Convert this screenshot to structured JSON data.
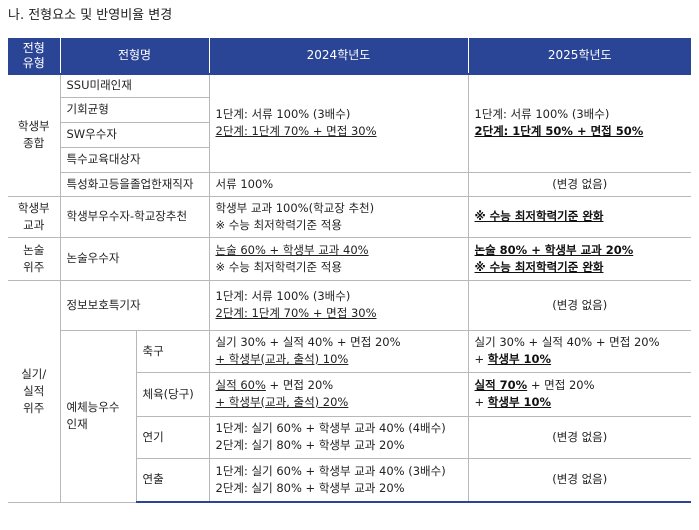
{
  "heading": "나. 전형요소 및 반영비율 변경",
  "colors": {
    "header_bg": "#2a4596",
    "header_text": "#ffffff",
    "border": "#b8b8b8"
  },
  "header": {
    "type_line1": "전형",
    "type_line2": "유형",
    "name": "전형명",
    "y2024": "2024학년도",
    "y2025": "2025학년도"
  },
  "groups": {
    "comprehensive": {
      "line1": "학생부",
      "line2": "종합"
    },
    "record": {
      "line1": "학생부",
      "line2": "교과"
    },
    "essay": {
      "line1": "논술",
      "line2": "위주"
    },
    "practical": {
      "line1": "실기/",
      "line2": "실적",
      "line3": "위주"
    }
  },
  "rows": {
    "ssu": "SSU미래인재",
    "gihoe": "기회균형",
    "sw": "SW우수자",
    "special_ed": "특수교육대상자",
    "specialized": "특성화고등을졸업한재직자",
    "school_rec": "학생부우수자-학교장추천",
    "essay": "논술우수자",
    "infosec": "정보보호특기자",
    "arts_group": {
      "line1": "예체능우수",
      "line2": "인재"
    },
    "soccer": "축구",
    "pe": "체육(당구)",
    "acting": "연기",
    "directing": "연출"
  },
  "cells": {
    "comp_2024": {
      "l1": "1단계: 서류 100% (3배수)",
      "l2": "2단계: 1단계 70% + 면접 30%"
    },
    "comp_2025": {
      "l1": "1단계: 서류 100% (3배수)",
      "l2": "2단계: 1단계 50% + 면접 50%"
    },
    "specialized_2024": "서류 100%",
    "no_change": "(변경 없음)",
    "school_2024": {
      "l1": "학생부 교과 100%(학교장 추천)",
      "l2": "※ 수능 최저학력기준 적용"
    },
    "school_2025": "※ 수능 최저학력기준 완화",
    "essay_2024": {
      "l1": "논술 60% + 학생부 교과 40%",
      "l2": "※ 수능 최저학력기준 적용"
    },
    "essay_2025": {
      "l1": "논술 80% + 학생부 교과 20%",
      "l2": "※ 수능 최저학력기준 완화"
    },
    "infosec_2024": {
      "l1": "1단계: 서류 100% (3배수)",
      "l2": "2단계: 1단계 70% + 면접 30%"
    },
    "soccer_2024": {
      "l1": "실기 30% + 실적 40% + 면접 20%",
      "l2": "+ 학생부(교과, 출석) 10%"
    },
    "soccer_2025": {
      "l1": "실기 30% + 실적 40% + 면접 20%",
      "l2_prefix": "+ ",
      "l2_bold": "학생부 10%"
    },
    "pe_2024": {
      "l1a": "실적 60%",
      "l1b": " + 면접 20%",
      "l2": "+ 학생부(교과, 출석) 20%"
    },
    "pe_2025": {
      "l1a": "실적 70%",
      "l1b": " + 면접 20%",
      "l2_prefix": "+ ",
      "l2_bold": "학생부 10%"
    },
    "acting_2024": {
      "l1": "1단계: 실기 60% + 학생부 교과 40% (4배수)",
      "l2": "2단계: 실기 80% + 학생부 교과 20%"
    },
    "directing_2024": {
      "l1": "1단계: 실기 60% + 학생부 교과 40% (3배수)",
      "l2": "2단계: 실기 80% + 학생부 교과 20%"
    }
  }
}
